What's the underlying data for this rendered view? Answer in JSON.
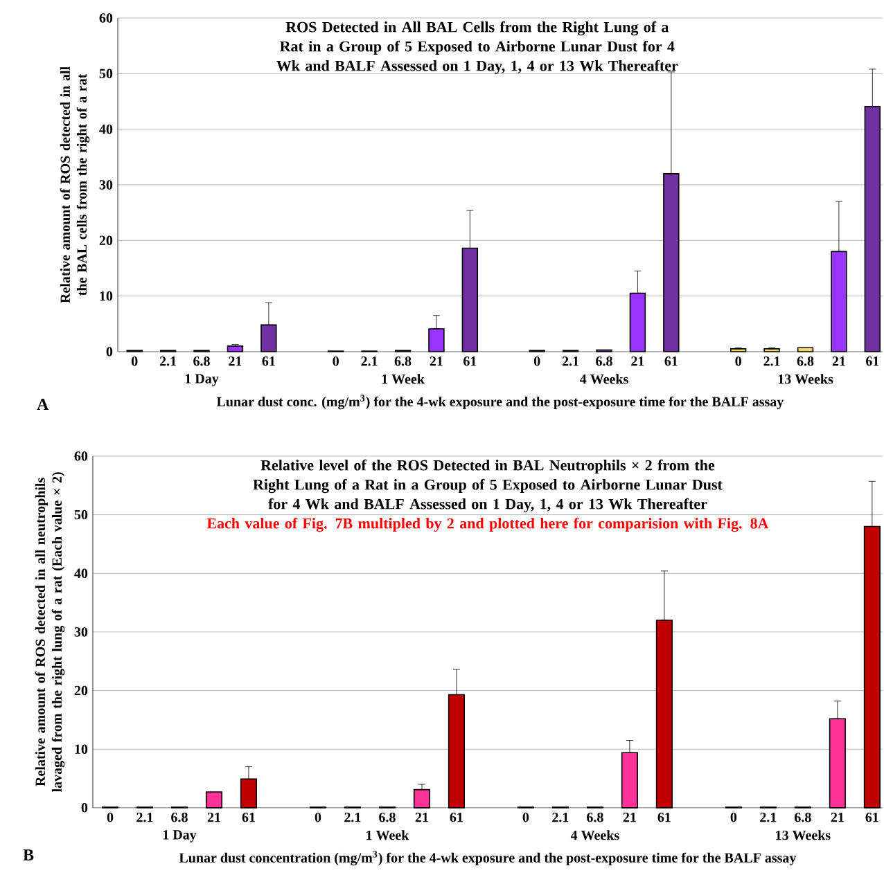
{
  "chart_data": [
    {
      "type": "bar",
      "title": "ROS Detected in All BAL Cells from the Right Lung of a Rat in a Group of 5 Exposed to Airborne Lunar Dust for 4 Wk and BALF Assessed on 1 Day, 1, 4 or 13  Wk Thereafter",
      "xlabel": "Lunar dust conc. (mg/m$^{3}$) for the 4-wk exposure and the post-exposure time for the BALF assay",
      "ylabel": "Relative amount of ROS detected in all the BAL cells from the right of a rat",
      "categories": [
        "0",
        "2.1",
        "6.8",
        "21",
        "61",
        null,
        "0",
        "2.1",
        "6.8",
        "21",
        "61",
        null,
        "0",
        "2.1",
        "6.8",
        "21",
        "61",
        null,
        "0",
        "2.1",
        "6.8",
        "21",
        "61"
      ],
      "values": [
        0.2,
        0.2,
        0.2,
        1.0,
        4.8,
        null,
        0.1,
        0.1,
        0.2,
        4.1,
        18.6,
        null,
        0.2,
        0.2,
        0.3,
        10.5,
        32.0,
        null,
        0.5,
        0.5,
        0.7,
        18.0,
        44.1
      ],
      "errors": [
        null,
        null,
        null,
        [
          1.0,
          1.3
        ],
        [
          4.8,
          8.8
        ],
        null,
        null,
        null,
        null,
        [
          4.1,
          6.5
        ],
        [
          18.6,
          25.4
        ],
        null,
        null,
        null,
        null,
        [
          10.5,
          14.5
        ],
        [
          32.0,
          50.3
        ],
        null,
        [
          0.5,
          0.7
        ],
        [
          0.5,
          0.7
        ],
        null,
        [
          18.0,
          27.0
        ],
        [
          44.1,
          50.8
        ]
      ],
      "colors": [
        "#7030a0",
        "#7030a0",
        "#7030a0",
        "#9933ff",
        "#7030a0",
        null,
        "#7030a0",
        "#7030a0",
        "#7030a0",
        "#9933ff",
        "#7030a0",
        null,
        "#7030a0",
        "#7030a0",
        "#7030a0",
        "#9933ff",
        "#7030a0",
        null,
        "#f0dc60",
        "#f0dc60",
        "#f0dc60",
        "#9933ff",
        "#7030a0"
      ],
      "ylim": [
        0,
        60
      ],
      "yticks": [
        0,
        10,
        20,
        30,
        40,
        50,
        60
      ],
      "grid": "y",
      "annotations": [
        "1 Day",
        "1 Week",
        "4 Weeks",
        "13 Weeks",
        "A"
      ]
    },
    {
      "type": "bar",
      "title": "Relative level of the ROS Detected in BAL Neutrophils × 2 from the Right Lung of a Rat in a Group of 5 Exposed to Airborne Lunar Dust for 4 Wk and BALF Assessed on 1 Day, 1, 4 or 13  Wk Thereafter",
      "subtitle": "Each value of Fig. 7B multipled by 2 and plotted here for comparision with Fig. 8A",
      "xlabel": "Lunar dust concentration (mg/m$^{3}$) for the 4-wk exposure and the post-exposure time for the BALF assay",
      "ylabel": "Relative amount of ROS detected in all neutrophils lavaged from the right lung of a rat (Each value × 2)",
      "categories": [
        "0",
        "2.1",
        "6.8",
        "21",
        "61",
        null,
        "0",
        "2.1",
        "6.8",
        "21",
        "61",
        null,
        "0",
        "2.1",
        "6.8",
        "21",
        "61",
        null,
        "0",
        "2.1",
        "6.8",
        "21",
        "61"
      ],
      "values": [
        0.1,
        0.1,
        0.1,
        2.7,
        4.9,
        null,
        0.1,
        0.1,
        0.1,
        3.1,
        19.3,
        null,
        0.1,
        0.1,
        0.1,
        9.4,
        32.0,
        null,
        0.1,
        0.1,
        0.1,
        15.2,
        48.0
      ],
      "errors": [
        null,
        null,
        null,
        null,
        [
          4.9,
          7.0
        ],
        null,
        null,
        null,
        null,
        [
          3.1,
          4.0
        ],
        [
          19.3,
          23.6
        ],
        null,
        null,
        null,
        null,
        [
          9.4,
          11.5
        ],
        [
          32.0,
          40.4
        ],
        null,
        null,
        null,
        null,
        [
          15.2,
          18.2
        ],
        [
          48.0,
          55.7
        ]
      ],
      "colors": [
        "#c00000",
        "#c00000",
        "#c00000",
        "#ff3399",
        "#c00000",
        null,
        "#c00000",
        "#c00000",
        "#c00000",
        "#ff3399",
        "#c00000",
        null,
        "#c00000",
        "#c00000",
        "#c00000",
        "#ff3399",
        "#c00000",
        null,
        "#c00000",
        "#c00000",
        "#c00000",
        "#ff3399",
        "#c00000"
      ],
      "ylim": [
        0,
        60
      ],
      "yticks": [
        0,
        10,
        20,
        30,
        40,
        50,
        60
      ],
      "grid": "y",
      "annotations": [
        "1 Day",
        "1 Week",
        "4 Weeks",
        "13 Weeks",
        "B"
      ]
    }
  ]
}
